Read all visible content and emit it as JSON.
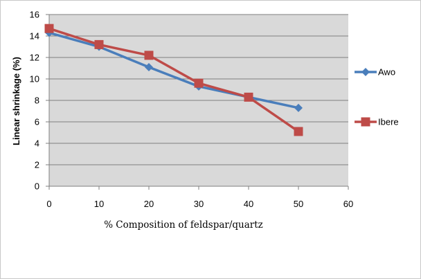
{
  "chart_data": {
    "type": "line",
    "title": "",
    "xlabel": "% Composition of feldspar/quartz",
    "ylabel": "Linear shrinkage (%)",
    "x": [
      0,
      10,
      20,
      30,
      40,
      50
    ],
    "xlim": [
      0,
      60
    ],
    "xticks": [
      "0",
      "10",
      "20",
      "30",
      "40",
      "50",
      "60"
    ],
    "ylim": [
      0,
      16
    ],
    "yticks": [
      "0",
      "2",
      "4",
      "6",
      "8",
      "10",
      "12",
      "14",
      "16"
    ],
    "grid": "horizontal",
    "plot_background": "#d9d9d9",
    "legend_position": "right",
    "series": [
      {
        "name": "Awo",
        "values": [
          14.3,
          13.0,
          11.1,
          9.3,
          8.3,
          7.3
        ],
        "color": "#4a7ebb",
        "marker": "diamond"
      },
      {
        "name": "Ibere",
        "values": [
          14.7,
          13.2,
          12.2,
          9.6,
          8.3,
          5.1
        ],
        "color": "#be4b48",
        "marker": "square"
      }
    ]
  }
}
